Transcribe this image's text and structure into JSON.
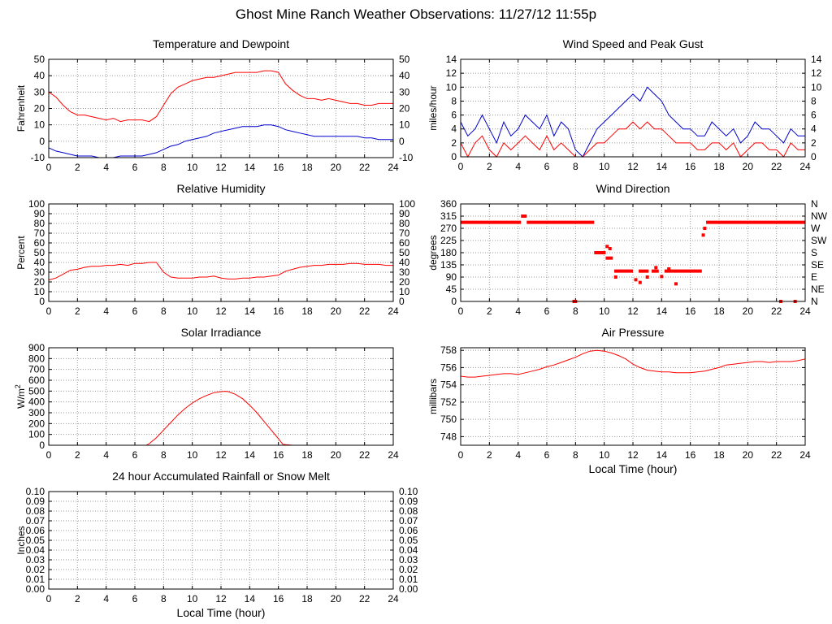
{
  "page": {
    "title": "Ghost Mine Ranch Weather Observations: 11/27/12 11:55p"
  },
  "colors": {
    "series_red": "#ff0000",
    "series_blue": "#0000cc",
    "grid": "#9a9a9a",
    "frame": "#000000"
  },
  "chart_data": [
    {
      "id": "temp",
      "type": "line",
      "title": "Temperature and Dewpoint",
      "ylabel": "Fahrenheit",
      "xlabel": "",
      "xlim": [
        0,
        24
      ],
      "ylim": [
        -10,
        50
      ],
      "xticks": [
        "0",
        "2",
        "4",
        "6",
        "8",
        "10",
        "12",
        "14",
        "16",
        "18",
        "20",
        "22",
        "24"
      ],
      "yticks": [
        "-10",
        "0",
        "10",
        "20",
        "30",
        "40",
        "50"
      ],
      "right_yticks": [
        "-10",
        "0",
        "10",
        "20",
        "30",
        "40",
        "50"
      ],
      "grid": true,
      "series": [
        {
          "color": "#ff0000",
          "x": [
            0,
            0.5,
            1,
            1.5,
            2,
            2.5,
            3,
            3.5,
            4,
            4.5,
            5,
            5.5,
            6,
            6.5,
            7,
            7.5,
            8,
            8.5,
            9,
            9.5,
            10,
            10.5,
            11,
            11.5,
            12,
            12.5,
            13,
            13.5,
            14,
            14.5,
            15,
            15.5,
            16,
            16.5,
            17,
            17.5,
            18,
            18.5,
            19,
            19.5,
            20,
            20.5,
            21,
            21.5,
            22,
            22.5,
            23,
            23.5,
            24
          ],
          "y": [
            30,
            27,
            22,
            18,
            16,
            16,
            15,
            14,
            13,
            14,
            12,
            13,
            13,
            13,
            12,
            15,
            22,
            29,
            33,
            35,
            37,
            38,
            39,
            39,
            40,
            41,
            42,
            42,
            42,
            42,
            43,
            43,
            42,
            35,
            31,
            28,
            26,
            26,
            25,
            26,
            25,
            24,
            23,
            23,
            22,
            22,
            23,
            23,
            23
          ]
        },
        {
          "color": "#0000cc",
          "x": [
            0,
            0.5,
            1,
            1.5,
            2,
            2.5,
            3,
            3.5,
            4,
            4.5,
            5,
            5.5,
            6,
            6.5,
            7,
            7.5,
            8,
            8.5,
            9,
            9.5,
            10,
            10.5,
            11,
            11.5,
            12,
            12.5,
            13,
            13.5,
            14,
            14.5,
            15,
            15.5,
            16,
            16.5,
            17,
            17.5,
            18,
            18.5,
            19,
            19.5,
            20,
            20.5,
            21,
            21.5,
            22,
            22.5,
            23,
            23.5,
            24
          ],
          "y": [
            -4,
            -6,
            -7,
            -8,
            -9,
            -9,
            -9,
            -10,
            -10,
            -10,
            -9,
            -9,
            -9,
            -9,
            -8,
            -7,
            -5,
            -3,
            -2,
            0,
            1,
            2,
            3,
            5,
            6,
            7,
            8,
            9,
            9,
            9,
            10,
            10,
            9,
            7,
            6,
            5,
            4,
            3,
            3,
            3,
            3,
            3,
            3,
            3,
            2,
            2,
            1,
            1,
            1
          ]
        }
      ]
    },
    {
      "id": "wind",
      "type": "line",
      "title": "Wind Speed and Peak Gust",
      "ylabel": "miles/hour",
      "xlabel": "",
      "xlim": [
        0,
        24
      ],
      "ylim": [
        0,
        14
      ],
      "xticks": [
        "0",
        "2",
        "4",
        "6",
        "8",
        "10",
        "12",
        "14",
        "16",
        "18",
        "20",
        "22",
        "24"
      ],
      "yticks": [
        "0",
        "2",
        "4",
        "6",
        "8",
        "10",
        "12",
        "14"
      ],
      "right_yticks": [
        "0",
        "2",
        "4",
        "6",
        "8",
        "10",
        "12",
        "14"
      ],
      "grid": true,
      "series": [
        {
          "color": "#0000cc",
          "x": [
            0,
            0.5,
            1,
            1.5,
            2,
            2.5,
            3,
            3.5,
            4,
            4.5,
            5,
            5.5,
            6,
            6.5,
            7,
            7.5,
            8,
            8.5,
            9,
            9.5,
            10,
            10.5,
            11,
            11.5,
            12,
            12.5,
            13,
            13.5,
            14,
            14.5,
            15,
            15.5,
            16,
            16.5,
            17,
            17.5,
            18,
            18.5,
            19,
            19.5,
            20,
            20.5,
            21,
            21.5,
            22,
            22.5,
            23,
            23.5,
            24
          ],
          "y": [
            5,
            3,
            4,
            6,
            4,
            2,
            5,
            3,
            4,
            6,
            5,
            4,
            6,
            3,
            5,
            4,
            1,
            0,
            2,
            4,
            5,
            6,
            7,
            8,
            9,
            8,
            10,
            9,
            8,
            6,
            5,
            4,
            4,
            3,
            3,
            5,
            4,
            3,
            4,
            2,
            3,
            5,
            4,
            4,
            3,
            2,
            4,
            3,
            3
          ]
        },
        {
          "color": "#ff0000",
          "x": [
            0,
            0.5,
            1,
            1.5,
            2,
            2.5,
            3,
            3.5,
            4,
            4.5,
            5,
            5.5,
            6,
            6.5,
            7,
            7.5,
            8,
            8.5,
            9,
            9.5,
            10,
            10.5,
            11,
            11.5,
            12,
            12.5,
            13,
            13.5,
            14,
            14.5,
            15,
            15.5,
            16,
            16.5,
            17,
            17.5,
            18,
            18.5,
            19,
            19.5,
            20,
            20.5,
            21,
            21.5,
            22,
            22.5,
            23,
            23.5,
            24
          ],
          "y": [
            2,
            0,
            2,
            3,
            1,
            0,
            2,
            1,
            2,
            3,
            2,
            1,
            3,
            1,
            2,
            1,
            0,
            0,
            1,
            2,
            2,
            3,
            4,
            4,
            5,
            4,
            5,
            4,
            4,
            3,
            2,
            2,
            2,
            1,
            1,
            2,
            2,
            1,
            2,
            0,
            1,
            2,
            2,
            1,
            1,
            0,
            2,
            1,
            1
          ]
        }
      ]
    },
    {
      "id": "rh",
      "type": "line",
      "title": "Relative Humidity",
      "ylabel": "Percent",
      "xlabel": "",
      "xlim": [
        0,
        24
      ],
      "ylim": [
        0,
        100
      ],
      "xticks": [
        "0",
        "2",
        "4",
        "6",
        "8",
        "10",
        "12",
        "14",
        "16",
        "18",
        "20",
        "22",
        "24"
      ],
      "yticks": [
        "0",
        "10",
        "20",
        "30",
        "40",
        "50",
        "60",
        "70",
        "80",
        "90",
        "100"
      ],
      "right_yticks": [
        "0",
        "10",
        "20",
        "30",
        "40",
        "50",
        "60",
        "70",
        "80",
        "90",
        "100"
      ],
      "grid": true,
      "series": [
        {
          "color": "#ff0000",
          "x": [
            0,
            0.5,
            1,
            1.5,
            2,
            2.5,
            3,
            3.5,
            4,
            4.5,
            5,
            5.5,
            6,
            6.5,
            7,
            7.5,
            8,
            8.5,
            9,
            9.5,
            10,
            10.5,
            11,
            11.5,
            12,
            12.5,
            13,
            13.5,
            14,
            14.5,
            15,
            15.5,
            16,
            16.5,
            17,
            17.5,
            18,
            18.5,
            19,
            19.5,
            20,
            20.5,
            21,
            21.5,
            22,
            22.5,
            23,
            23.5,
            24
          ],
          "y": [
            22,
            24,
            28,
            32,
            33,
            35,
            36,
            36,
            37,
            37,
            38,
            37,
            39,
            39,
            40,
            40,
            30,
            25,
            24,
            24,
            24,
            25,
            25,
            26,
            24,
            23,
            23,
            24,
            24,
            25,
            25,
            26,
            27,
            31,
            33,
            35,
            36,
            37,
            37,
            38,
            38,
            38,
            39,
            39,
            38,
            38,
            38,
            37,
            37
          ]
        }
      ]
    },
    {
      "id": "wdir",
      "type": "scatter",
      "title": "Wind Direction",
      "ylabel": "degrees",
      "xlabel": "",
      "xlim": [
        0,
        24
      ],
      "ylim": [
        0,
        360
      ],
      "xticks": [
        "0",
        "2",
        "4",
        "6",
        "8",
        "10",
        "12",
        "14",
        "16",
        "18",
        "20",
        "22",
        "24"
      ],
      "yticks": [
        "0",
        "45",
        "90",
        "135",
        "180",
        "225",
        "270",
        "315",
        "360"
      ],
      "right_yticks": [
        "N",
        "NE",
        "E",
        "SE",
        "S",
        "SW",
        "W",
        "NW",
        "N"
      ],
      "grid": true,
      "series": [
        {
          "color": "#ff0000",
          "segments": [
            [
              0,
              4.2,
              292
            ],
            [
              4.2,
              4.6,
              315
            ],
            [
              4.6,
              9.3,
              292
            ],
            [
              9.3,
              10.1,
              180
            ],
            [
              10.1,
              10.6,
              160
            ],
            [
              10.7,
              12.0,
              112
            ],
            [
              12.4,
              13.1,
              112
            ],
            [
              13.3,
              13.8,
              112
            ],
            [
              14.2,
              16.8,
              112
            ],
            [
              17.1,
              24,
              292
            ]
          ],
          "points": [
            [
              7.9,
              0
            ],
            [
              8.0,
              0
            ],
            [
              10.2,
              203
            ],
            [
              10.4,
              195
            ],
            [
              10.8,
              90
            ],
            [
              12.2,
              80
            ],
            [
              12.5,
              70
            ],
            [
              13.0,
              90
            ],
            [
              13.6,
              125
            ],
            [
              14.0,
              92
            ],
            [
              14.5,
              120
            ],
            [
              15.0,
              65
            ],
            [
              16.9,
              245
            ],
            [
              17.0,
              270
            ],
            [
              22.3,
              0
            ],
            [
              23.3,
              0
            ]
          ]
        }
      ]
    },
    {
      "id": "solar",
      "type": "line",
      "title": "Solar Irradiance",
      "ylabel": "W/m",
      "ylabel_sup": "2",
      "xlabel": "",
      "xlim": [
        0,
        24
      ],
      "ylim": [
        0,
        900
      ],
      "xticks": [
        "0",
        "2",
        "4",
        "6",
        "8",
        "10",
        "12",
        "14",
        "16",
        "18",
        "20",
        "22",
        "24"
      ],
      "yticks": [
        "0",
        "100",
        "200",
        "300",
        "400",
        "500",
        "600",
        "700",
        "800",
        "900"
      ],
      "right_yticks": [],
      "grid": true,
      "series": [
        {
          "color": "#ff0000",
          "x": [
            0,
            6.8,
            7,
            7.5,
            8,
            8.5,
            9,
            9.5,
            10,
            10.5,
            11,
            11.5,
            12,
            12.3,
            12.5,
            13,
            13.5,
            14,
            14.5,
            15,
            15.5,
            16,
            16.3,
            16.5,
            17,
            24
          ],
          "y": [
            0,
            0,
            15,
            70,
            140,
            210,
            280,
            340,
            390,
            430,
            460,
            485,
            495,
            498,
            495,
            470,
            430,
            370,
            300,
            220,
            140,
            60,
            10,
            5,
            0,
            0
          ]
        }
      ]
    },
    {
      "id": "pressure",
      "type": "line",
      "title": "Air Pressure",
      "ylabel": "millibars",
      "xlabel": "Local Time (hour)",
      "xlim": [
        0,
        24
      ],
      "ylim": [
        747,
        758.3
      ],
      "xticks": [
        "0",
        "2",
        "4",
        "6",
        "8",
        "10",
        "12",
        "14",
        "16",
        "18",
        "20",
        "22",
        "24"
      ],
      "yticks": [
        "748",
        "750",
        "752",
        "754",
        "756",
        "758"
      ],
      "right_yticks": [],
      "grid": true,
      "series": [
        {
          "color": "#ff0000",
          "x": [
            0,
            0.5,
            1,
            1.5,
            2,
            2.5,
            3,
            3.5,
            4,
            4.5,
            5,
            5.5,
            6,
            6.5,
            7,
            7.5,
            8,
            8.5,
            9,
            9.5,
            10,
            10.5,
            11,
            11.5,
            12,
            12.5,
            13,
            13.5,
            14,
            14.5,
            15,
            15.5,
            16,
            16.5,
            17,
            17.5,
            18,
            18.5,
            19,
            19.5,
            20,
            20.5,
            21,
            21.5,
            22,
            22.5,
            23,
            23.5,
            24
          ],
          "y": [
            755.0,
            754.9,
            754.9,
            755.0,
            755.1,
            755.2,
            755.3,
            755.3,
            755.2,
            755.4,
            755.6,
            755.8,
            756.1,
            756.3,
            756.6,
            756.9,
            757.2,
            757.6,
            757.9,
            758.0,
            757.9,
            757.7,
            757.4,
            757.0,
            756.4,
            756.0,
            755.7,
            755.6,
            755.5,
            755.5,
            755.4,
            755.4,
            755.4,
            755.5,
            755.6,
            755.8,
            756.0,
            756.3,
            756.4,
            756.5,
            756.6,
            756.7,
            756.7,
            756.6,
            756.7,
            756.7,
            756.7,
            756.8,
            757.0
          ]
        }
      ]
    },
    {
      "id": "rain",
      "type": "line",
      "title": "24 hour Accumulated Rainfall or Snow Melt",
      "ylabel": "Inches",
      "xlabel": "Local Time (hour)",
      "xlim": [
        0,
        24
      ],
      "ylim": [
        0,
        0.1
      ],
      "xticks": [
        "0",
        "2",
        "4",
        "6",
        "8",
        "10",
        "12",
        "14",
        "16",
        "18",
        "20",
        "22",
        "24"
      ],
      "yticks": [
        "0.00",
        "0.01",
        "0.02",
        "0.03",
        "0.04",
        "0.05",
        "0.06",
        "0.07",
        "0.08",
        "0.09",
        "0.10"
      ],
      "right_yticks": [
        "0.00",
        "0.01",
        "0.02",
        "0.03",
        "0.04",
        "0.05",
        "0.06",
        "0.07",
        "0.08",
        "0.09",
        "0.10"
      ],
      "grid": true,
      "series": [
        {
          "color": "#ff0000",
          "x": [
            0,
            24
          ],
          "y": [
            0,
            0
          ]
        }
      ]
    }
  ]
}
